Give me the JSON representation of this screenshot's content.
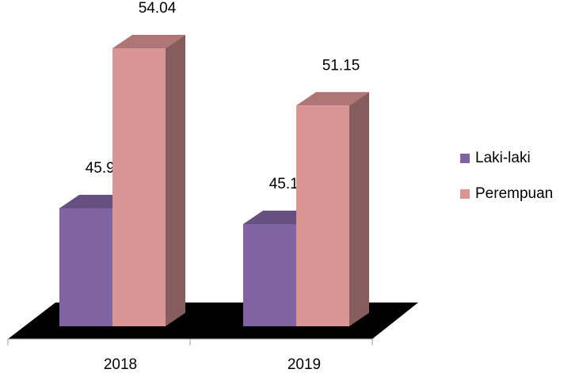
{
  "chart_data": {
    "type": "bar3d",
    "categories": [
      "2018",
      "2019"
    ],
    "series": [
      {
        "name": "Laki-laki",
        "color": "#8064a2",
        "values": [
          45.96,
          45.16
        ]
      },
      {
        "name": "Perempuan",
        "color": "#d99594",
        "values": [
          54.04,
          51.15
        ]
      }
    ],
    "ylim": [
      40,
      55
    ],
    "legend": "right"
  }
}
